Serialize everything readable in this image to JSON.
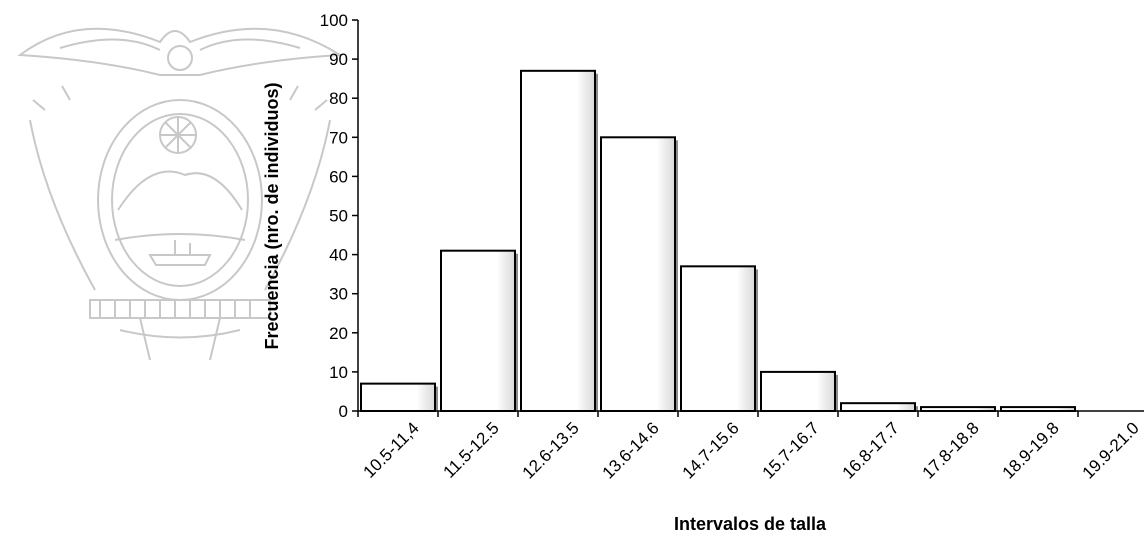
{
  "chart_data": {
    "type": "bar",
    "title": "",
    "xlabel": "Intervalos de talla",
    "ylabel": "Frecuencia (nro. de individuos)",
    "ylim": [
      0,
      100
    ],
    "yticks": [
      0,
      10,
      20,
      30,
      40,
      50,
      60,
      70,
      80,
      90,
      100
    ],
    "categories": [
      "10.5-11,4",
      "11.5-12.5",
      "12.6-13.5",
      "13.6-14.6",
      "14.7-15.6",
      "15.7-16.7",
      "16.8-17.7",
      "17.8-18.8",
      "18.9-19.8",
      "19.9-21.0"
    ],
    "values": [
      7,
      41,
      87,
      70,
      37,
      10,
      2,
      1,
      1,
      0
    ],
    "grid": false,
    "legend": "none",
    "colors": {
      "bar_fill": "#ffffff",
      "bar_edge": "#000000",
      "watermark": "#c8c8c8"
    }
  },
  "watermark": {
    "icon": "coat-of-arms-watermark-icon"
  }
}
